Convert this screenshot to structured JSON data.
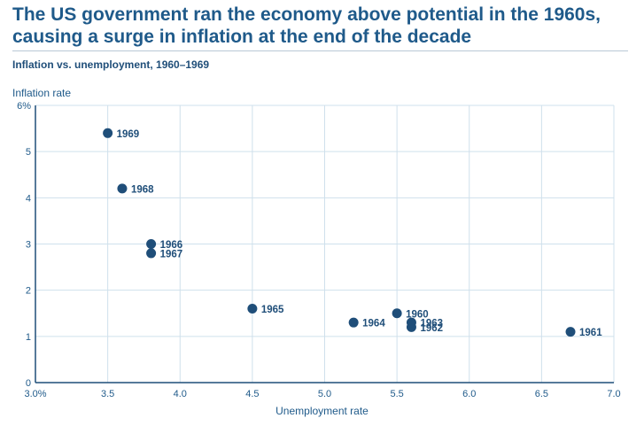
{
  "title": "The US government ran the economy above potential in the 1960s, causing a surge in inflation at the end of the decade",
  "chart_data": {
    "type": "scatter",
    "subtitle": "Inflation vs. unemployment, 1960–1969",
    "xlabel": "Unemployment rate",
    "ylabel": "Inflation rate",
    "xlim": [
      3.0,
      7.0
    ],
    "ylim": [
      0,
      6
    ],
    "xticks": [
      "3.0%",
      "3.5",
      "4.0",
      "4.5",
      "5.0",
      "5.5",
      "6.0",
      "6.5",
      "7.0"
    ],
    "xtick_values": [
      3.0,
      3.5,
      4.0,
      4.5,
      5.0,
      5.5,
      6.0,
      6.5,
      7.0
    ],
    "yticks": [
      "0",
      "1",
      "2",
      "3",
      "4",
      "5",
      "6%"
    ],
    "ytick_values": [
      0,
      1,
      2,
      3,
      4,
      5,
      6
    ],
    "grid": true,
    "marker_color": "#1f4e79",
    "grid_color": "#cfe0ec",
    "points": [
      {
        "label": "1960",
        "x": 5.5,
        "y": 1.5
      },
      {
        "label": "1961",
        "x": 6.7,
        "y": 1.1
      },
      {
        "label": "1962",
        "x": 5.6,
        "y": 1.2
      },
      {
        "label": "1963",
        "x": 5.6,
        "y": 1.3
      },
      {
        "label": "1964",
        "x": 5.2,
        "y": 1.3
      },
      {
        "label": "1965",
        "x": 4.5,
        "y": 1.6
      },
      {
        "label": "1966",
        "x": 3.8,
        "y": 3.0
      },
      {
        "label": "1967",
        "x": 3.8,
        "y": 2.8
      },
      {
        "label": "1968",
        "x": 3.6,
        "y": 4.2
      },
      {
        "label": "1969",
        "x": 3.5,
        "y": 5.4
      }
    ]
  }
}
